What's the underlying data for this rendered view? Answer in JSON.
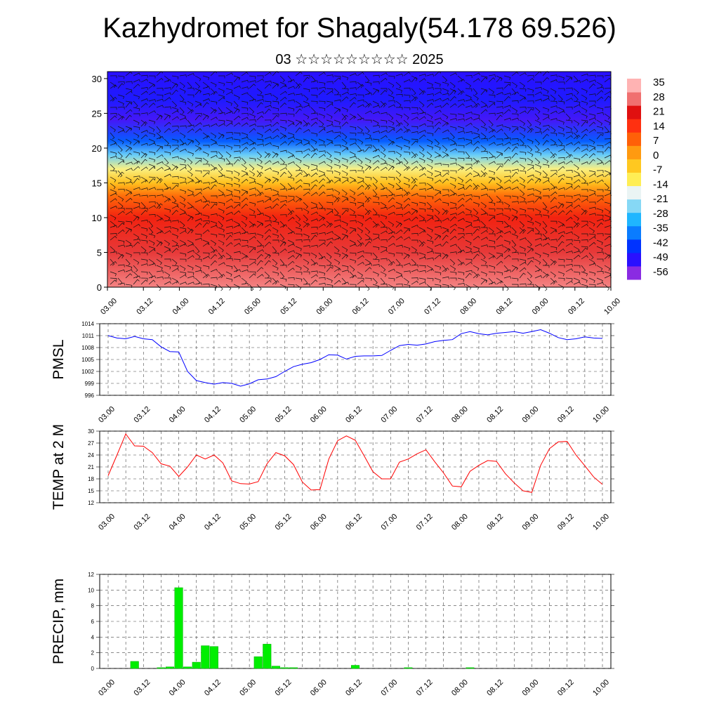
{
  "title": "Kazhydromet for Shagaly(54.178 69.526)",
  "subtitle": "03 ☆☆☆☆☆☆☆☆☆ 2025",
  "colors": {
    "pmsl_line": "#0000ff",
    "temp_line": "#ff0000",
    "precip_bar": "#00ee00",
    "colorbar": [
      "#8a2be2",
      "#2a10ff",
      "#0033ff",
      "#0a7cff",
      "#1fb6ff",
      "#86d8f5",
      "#eaf4f4",
      "#ffee55",
      "#ffc820",
      "#ff9a10",
      "#ff6008",
      "#ff3010",
      "#e01010",
      "#f07070",
      "#ffb3b3"
    ]
  },
  "chart_data": [
    {
      "type": "heatmap",
      "name": "cross-section",
      "ylim": [
        0,
        31
      ],
      "yticks": [
        0,
        5,
        10,
        15,
        20,
        25,
        30
      ],
      "xticks": [
        "03.00",
        "03.12",
        "04.00",
        "04.12",
        "05.00",
        "05.12",
        "06.00",
        "06.12",
        "07.00",
        "07.12",
        "08.00",
        "08.12",
        "09.00",
        "09.12",
        "10.00"
      ],
      "colorbar_labels": [
        "35",
        "28",
        "21",
        "14",
        "7",
        "0",
        "-7",
        "-14",
        "-21",
        "-28",
        "-35",
        "-42",
        "-49",
        "-56"
      ],
      "colorbar_range": [
        -63,
        35
      ],
      "temperature_by_level": [
        {
          "level": 0,
          "value": 30
        },
        {
          "level": 5,
          "value": 24
        },
        {
          "level": 10,
          "value": 17
        },
        {
          "level": 13,
          "value": 6
        },
        {
          "level": 15,
          "value": -6
        },
        {
          "level": 17,
          "value": -16
        },
        {
          "level": 19,
          "value": -30
        },
        {
          "level": 21,
          "value": -45
        },
        {
          "level": 24,
          "value": -58
        },
        {
          "level": 27,
          "value": -54
        },
        {
          "level": 31,
          "value": -56
        }
      ],
      "overlay": "wind barbs"
    },
    {
      "type": "line",
      "ylabel": "PMSL",
      "ylim": [
        996,
        1014
      ],
      "yticks": [
        996,
        999,
        1002,
        1005,
        1008,
        1011,
        1014
      ],
      "xticks": [
        "03.00",
        "03.12",
        "04.00",
        "04.12",
        "05.00",
        "05.12",
        "06.00",
        "06.12",
        "07.00",
        "07.12",
        "08.00",
        "08.12",
        "09.00",
        "09.12",
        "10.00"
      ],
      "x_step_hours": 3,
      "values": [
        1011.0,
        1010.4,
        1010.2,
        1010.8,
        1010.2,
        1010.0,
        1008.2,
        1007.0,
        1006.9,
        1002.0,
        999.7,
        999.2,
        998.8,
        999.2,
        999.0,
        998.3,
        998.9,
        999.9,
        1000.1,
        1000.7,
        1002.0,
        1003.2,
        1003.8,
        1004.2,
        1005.0,
        1006.2,
        1006.1,
        1005.1,
        1005.8,
        1005.9,
        1005.9,
        1006.0,
        1007.3,
        1008.5,
        1008.8,
        1008.6,
        1008.9,
        1009.5,
        1009.8,
        1010.0,
        1011.5,
        1012.0,
        1011.5,
        1011.2,
        1011.6,
        1011.8,
        1012.0,
        1011.6,
        1012.0,
        1012.5,
        1011.6,
        1010.5,
        1010.0,
        1010.2,
        1010.7,
        1010.4,
        1010.3
      ]
    },
    {
      "type": "line",
      "ylabel": "TEMP at 2 M",
      "ylim": [
        12,
        30
      ],
      "yticks": [
        12,
        15,
        18,
        21,
        24,
        27,
        30
      ],
      "xticks": [
        "03.00",
        "03.12",
        "04.00",
        "04.12",
        "05.00",
        "05.12",
        "06.00",
        "06.12",
        "07.00",
        "07.12",
        "08.00",
        "08.12",
        "09.00",
        "09.12",
        "10.00"
      ],
      "x_step_hours": 3,
      "values": [
        18.8,
        24.0,
        29.3,
        26.3,
        26.2,
        24.6,
        21.8,
        21.2,
        18.6,
        21.0,
        24.0,
        23.0,
        24.0,
        22.0,
        17.5,
        16.8,
        16.7,
        17.3,
        21.8,
        24.6,
        23.8,
        21.6,
        17.2,
        15.2,
        15.3,
        23.0,
        27.6,
        28.8,
        27.7,
        23.8,
        19.8,
        18.0,
        18.0,
        22.2,
        23.0,
        24.3,
        25.3,
        22.3,
        19.5,
        16.2,
        16.0,
        19.9,
        21.4,
        22.6,
        22.4,
        19.3,
        17.0,
        15.0,
        14.6,
        21.4,
        25.6,
        27.3,
        27.4,
        24.0,
        21.3,
        18.5,
        16.6
      ]
    },
    {
      "type": "bar",
      "ylabel": "PRECIP, mm",
      "ylim": [
        0,
        12
      ],
      "yticks": [
        0,
        2,
        4,
        6,
        8,
        10,
        12
      ],
      "xticks": [
        "03.00",
        "03.12",
        "04.00",
        "04.12",
        "05.00",
        "05.12",
        "06.00",
        "06.12",
        "07.00",
        "07.12",
        "08.00",
        "08.12",
        "09.00",
        "09.12",
        "10.00"
      ],
      "x_step_hours": 3,
      "values": [
        0,
        0,
        0,
        0.9,
        0,
        0,
        0.1,
        0.2,
        10.3,
        0.2,
        0.8,
        2.9,
        2.8,
        0,
        0,
        0,
        0,
        1.5,
        3.1,
        0.3,
        0.1,
        0.1,
        0,
        0,
        0,
        0,
        0,
        0,
        0.4,
        0,
        0,
        0,
        0,
        0,
        0.1,
        0,
        0,
        0,
        0,
        0,
        0,
        0.1,
        0,
        0,
        0,
        0,
        0,
        0,
        0,
        0,
        0,
        0,
        0,
        0,
        0,
        0,
        0
      ]
    }
  ]
}
